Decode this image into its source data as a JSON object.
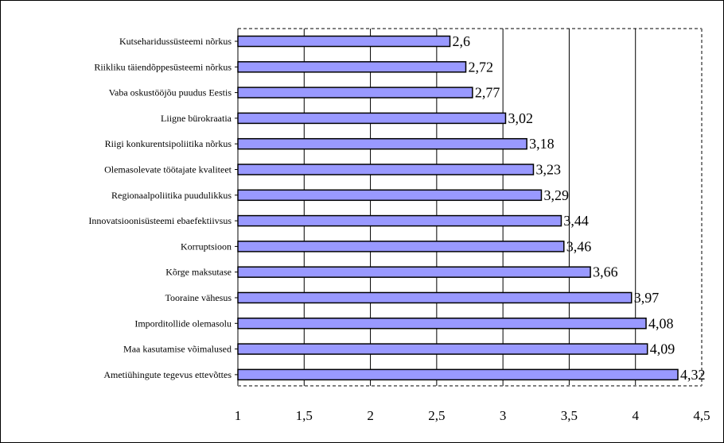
{
  "chart_data": {
    "type": "bar",
    "orientation": "horizontal",
    "categories": [
      "Kutseharidussüsteemi nõrkus",
      "Riikliku täiendõppesüsteemi nõrkus",
      "Vaba oskustööjõu puudus Eestis",
      "Liigne bürokraatia",
      "Riigi konkurentsipoliitika nõrkus",
      "Olemasolevate töötajate kvaliteet",
      "Regionaalpoliitika puudulikkus",
      "Innovatsioonisüsteemi ebaefektiivsus",
      "Korruptsioon",
      "Kõrge maksutase",
      "Tooraine vähesus",
      "Imporditollide olemasolu",
      "Maa kasutamise võimalused",
      "Ametiühingute tegevus ettevõttes"
    ],
    "values": [
      2.6,
      2.72,
      2.77,
      3.02,
      3.18,
      3.23,
      3.29,
      3.44,
      3.46,
      3.66,
      3.97,
      4.08,
      4.09,
      4.32
    ],
    "value_labels": [
      "2,6",
      "2,72",
      "2,77",
      "3,02",
      "3,18",
      "3,23",
      "3,29",
      "3,44",
      "3,46",
      "3,66",
      "3,97",
      "4,08",
      "4,09",
      "4,32"
    ],
    "x_ticks": [
      1,
      1.5,
      2,
      2.5,
      3,
      3.5,
      4,
      4.5
    ],
    "x_tick_labels": [
      "1",
      "1,5",
      "2",
      "2,5",
      "3",
      "3,5",
      "4",
      "4,5"
    ],
    "xlim": [
      1,
      4.5
    ],
    "title": "",
    "xlabel": "",
    "ylabel": "",
    "grid": true,
    "legend": "none",
    "colors": {
      "bar_fill": "#9999ff",
      "bar_stroke": "#000000",
      "grid": "#000000"
    }
  }
}
